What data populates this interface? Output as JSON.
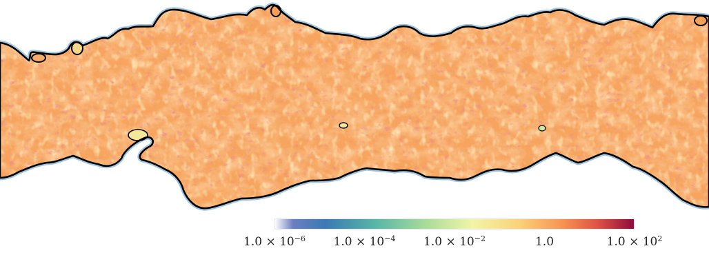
{
  "figure": {
    "colormap": {
      "stops": [
        {
          "offset": 0.0,
          "color": "#fbfbfe"
        },
        {
          "offset": 0.05,
          "color": "#6b7fc0"
        },
        {
          "offset": 0.14,
          "color": "#3a7ab4"
        },
        {
          "offset": 0.28,
          "color": "#58b6a8"
        },
        {
          "offset": 0.42,
          "color": "#a8dc9a"
        },
        {
          "offset": 0.55,
          "color": "#f2f5a6"
        },
        {
          "offset": 0.68,
          "color": "#fbd27a"
        },
        {
          "offset": 0.8,
          "color": "#f79451"
        },
        {
          "offset": 0.9,
          "color": "#de5244"
        },
        {
          "offset": 1.0,
          "color": "#8e0b3c"
        }
      ],
      "ticks": [
        {
          "value": 0.0,
          "base": "1.0 × 10",
          "exponent": "−6"
        },
        {
          "value": 0.25,
          "base": "1.0 × 10",
          "exponent": "−4"
        },
        {
          "value": 0.5,
          "base": "1.0 × 10",
          "exponent": "−2"
        },
        {
          "value": 0.75,
          "base": "1.0",
          "exponent": ""
        },
        {
          "value": 1.0,
          "base": "1.0 × 10",
          "exponent": "2"
        }
      ]
    },
    "field": {
      "fill_base": "#f6a45e",
      "fill_light": "#fbd888",
      "fill_dark": "#e2593c",
      "interface_color": "#000000",
      "edge_tint": "#5a95c4"
    }
  }
}
